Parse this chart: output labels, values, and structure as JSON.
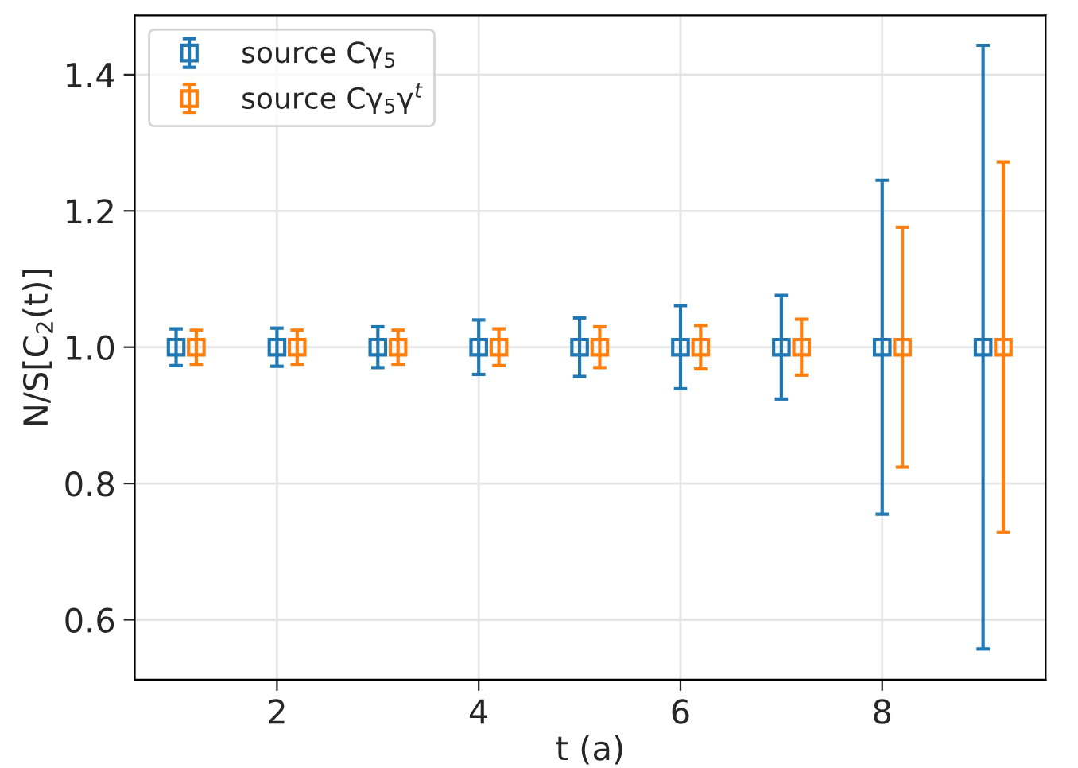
{
  "chart_data": {
    "type": "scatter",
    "xlabel": "t (a)",
    "ylabel": "N/S[C$_{2}$(t)]",
    "xlim": [
      0.59,
      9.62
    ],
    "xticks": [
      2,
      4,
      6,
      8
    ],
    "ylim": [
      0.512,
      1.487
    ],
    "yticks": [
      0.6,
      0.8,
      {
        "value": 1,
        "label": "1.0"
      },
      1.2,
      1.4
    ],
    "grid": true,
    "legend": "top left",
    "marker": "square",
    "series": [
      {
        "name": "source Cγ$_{5}$",
        "color": "#1f77b4",
        "x": [
          1,
          2,
          3,
          4,
          5,
          6,
          7,
          8,
          9
        ],
        "values": [
          1,
          1,
          1,
          1,
          1,
          1,
          1,
          1,
          1
        ],
        "errors": [
          0.027,
          0.028,
          0.03,
          0.04,
          0.043,
          0.061,
          0.076,
          0.245,
          0.443
        ]
      },
      {
        "name": "source Cγ$_{5}$γ$^{t}$",
        "color": "#ff7f0e",
        "x": [
          1.2,
          2.2,
          3.2,
          4.2,
          5.2,
          6.2,
          7.2,
          8.2,
          9.2
        ],
        "values": [
          1,
          1,
          1,
          1,
          1,
          1,
          1,
          1,
          1
        ],
        "errors": [
          0.025,
          0.025,
          0.025,
          0.027,
          0.03,
          0.032,
          0.041,
          0.176,
          0.272
        ]
      }
    ]
  }
}
